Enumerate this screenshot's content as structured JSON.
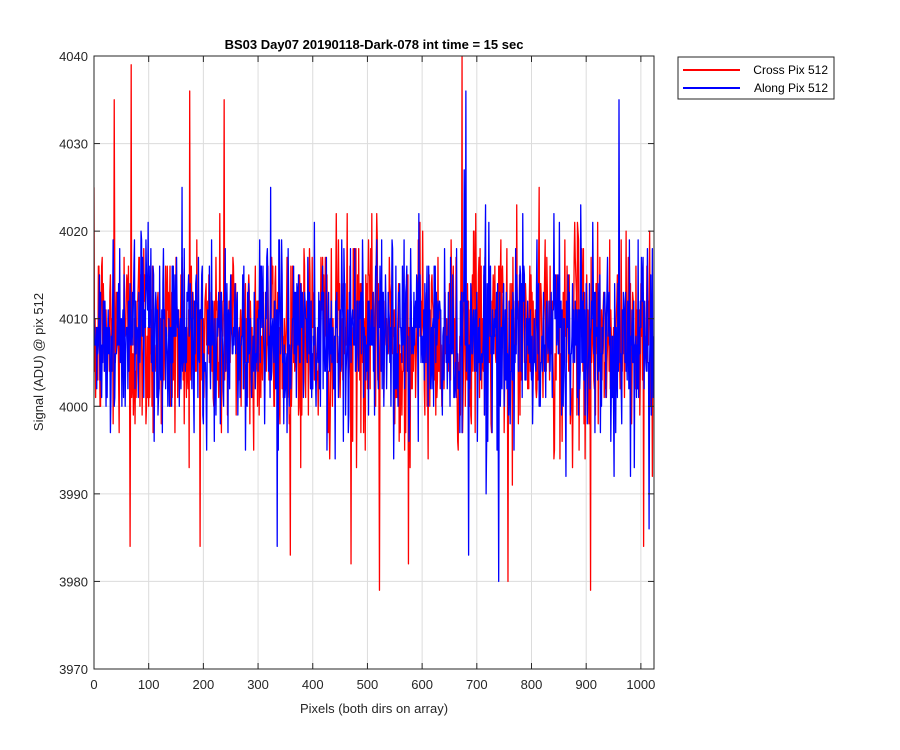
{
  "chart_data": {
    "type": "line",
    "title": "BS03 Day07 20190118-Dark-078 int time = 15 sec",
    "xlabel": "Pixels (both dirs on array)",
    "ylabel": "Signal (ADU) @ pix 512",
    "xlim": [
      0,
      1024
    ],
    "ylim": [
      3970,
      4040
    ],
    "xticks": [
      0,
      100,
      200,
      300,
      400,
      500,
      600,
      700,
      800,
      900,
      1000
    ],
    "yticks": [
      3970,
      3980,
      3990,
      4000,
      4010,
      4020,
      4030,
      4040
    ],
    "grid": true,
    "legend_position": "outside top-right",
    "series": [
      {
        "name": "Cross Pix 512",
        "color": "#ff0000",
        "n_points": 1024,
        "mean": 4008,
        "std": 6,
        "peaks": [
          {
            "x": 37,
            "y": 4035
          },
          {
            "x": 68,
            "y": 4039
          },
          {
            "x": 66,
            "y": 3984
          },
          {
            "x": 175,
            "y": 4036
          },
          {
            "x": 238,
            "y": 4035
          },
          {
            "x": 470,
            "y": 3982
          },
          {
            "x": 522,
            "y": 3979
          },
          {
            "x": 575,
            "y": 3982
          },
          {
            "x": 673,
            "y": 4040
          },
          {
            "x": 757,
            "y": 3980
          },
          {
            "x": 908,
            "y": 3979
          },
          {
            "x": 1005,
            "y": 3984
          }
        ]
      },
      {
        "name": "Along Pix 512",
        "color": "#0000ff",
        "n_points": 1024,
        "mean": 4008,
        "std": 5.5,
        "peaks": [
          {
            "x": 335,
            "y": 3984
          },
          {
            "x": 680,
            "y": 4036
          },
          {
            "x": 685,
            "y": 3983
          },
          {
            "x": 740,
            "y": 3980
          },
          {
            "x": 960,
            "y": 4035
          },
          {
            "x": 1015,
            "y": 3986
          }
        ]
      }
    ]
  }
}
